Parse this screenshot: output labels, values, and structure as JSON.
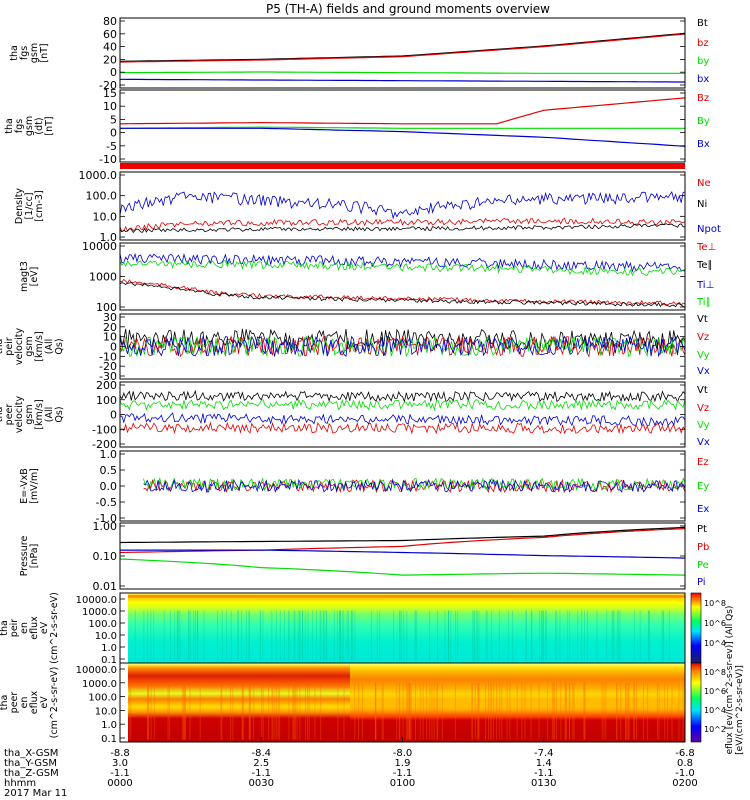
{
  "title": "P5 (TH-A) fields and ground moments overview",
  "date_label": "2017 Mar 11",
  "colors": {
    "black": "#000000",
    "red": "#e00000",
    "green": "#00dd00",
    "blue": "#0000d0"
  },
  "x_axis": {
    "row_labels": [
      "tha_X-GSM",
      "tha_Y-GSM",
      "tha_Z-GSM",
      "hhmm"
    ],
    "columns": [
      {
        "x": "-8.8",
        "y": "3.0",
        "z": "-1.1",
        "t": "0000"
      },
      {
        "x": "-8.4",
        "y": "2.5",
        "z": "-1.1",
        "t": "0030"
      },
      {
        "x": "-8.0",
        "y": "1.9",
        "z": "-1.1",
        "t": "0100"
      },
      {
        "x": "-7.4",
        "y": "1.4",
        "z": "-1.1",
        "t": "0130"
      },
      {
        "x": "-6.8",
        "y": "0.8",
        "z": "-1.0",
        "t": "0200"
      }
    ]
  },
  "colorbar": {
    "label": "[eV/(cm^2-s-sr-eV)]",
    "top_ticks": [
      "10^8",
      "10^6",
      "10^4"
    ],
    "bottom_ticks": [
      "10^8",
      "10^6",
      "10^4",
      "10^2"
    ],
    "overlap_label": "eflux [ev/(cm^2-s-sr-ev)] (All Qs)"
  },
  "chart_data": [
    {
      "type": "line",
      "ylabel": "tha fgs gsm [nT]",
      "ylim": [
        -20,
        85
      ],
      "y_ticks": [
        "80",
        "60",
        "40",
        "20",
        "0",
        "-20"
      ],
      "legend": [
        "Bt",
        "bz",
        "by",
        "bx"
      ],
      "series": [
        {
          "name": "Bt",
          "color": "#000000",
          "x": [
            0,
            30,
            60,
            90,
            120
          ],
          "values": [
            20,
            23,
            28,
            43,
            62
          ]
        },
        {
          "name": "bz",
          "color": "#e00000",
          "x": [
            0,
            30,
            60,
            90,
            120
          ],
          "values": [
            19,
            22,
            27,
            42,
            61
          ]
        },
        {
          "name": "by",
          "color": "#00dd00",
          "x": [
            0,
            30,
            60,
            90,
            120
          ],
          "values": [
            3,
            4,
            3,
            2,
            2
          ]
        },
        {
          "name": "bx",
          "color": "#0000d0",
          "x": [
            0,
            30,
            60,
            90,
            120
          ],
          "values": [
            -7,
            -8,
            -9,
            -10,
            -11
          ]
        }
      ]
    },
    {
      "type": "line",
      "ylabel": "tha fgs gsm (dt) [nT]",
      "ylim": [
        -15,
        17
      ],
      "y_ticks": [
        "15",
        "10",
        "5",
        "0",
        "-5",
        "-10"
      ],
      "legend": [
        "Bz",
        "By",
        "Bx"
      ],
      "series": [
        {
          "name": "Bz",
          "color": "#e00000",
          "x": [
            0,
            30,
            60,
            80,
            90,
            120
          ],
          "values": [
            2,
            2.5,
            2,
            2,
            8,
            13.5
          ]
        },
        {
          "name": "By",
          "color": "#00dd00",
          "x": [
            0,
            30,
            60,
            90,
            120
          ],
          "values": [
            0,
            0.5,
            0,
            0,
            0
          ]
        },
        {
          "name": "Bx",
          "color": "#0000d0",
          "x": [
            0,
            30,
            60,
            90,
            120
          ],
          "values": [
            0,
            0,
            -1.5,
            -4,
            -8
          ]
        }
      ]
    },
    {
      "type": "line",
      "ylabel": "Density [1/cc] [cm-3]",
      "ylim": [
        0.3,
        2000
      ],
      "log": true,
      "y_ticks": [
        "1000.0",
        "100.0",
        "10.0",
        "1.0"
      ],
      "legend": [
        "Ne",
        "Ni",
        "Npot"
      ],
      "series": [
        {
          "name": "Ne",
          "color": "#0000d0",
          "x": [
            0,
            15,
            30,
            60,
            90,
            120
          ],
          "values": [
            12,
            80,
            50,
            8,
            60,
            80
          ]
        },
        {
          "name": "Ni",
          "color": "#e00000",
          "x": [
            0,
            15,
            30,
            60,
            90,
            120
          ],
          "values": [
            1.2,
            2.5,
            2.8,
            3,
            3.5,
            3
          ]
        },
        {
          "name": "Npot",
          "color": "#000000",
          "x": [
            0,
            30,
            60,
            90,
            120
          ],
          "values": [
            1,
            1.2,
            1.3,
            1.5,
            2
          ]
        }
      ]
    },
    {
      "type": "line",
      "ylabel": "magt3 [eV]",
      "ylim": [
        20,
        12000
      ],
      "log": true,
      "y_ticks": [
        "10000",
        "1000",
        "100"
      ],
      "legend": [
        "Te⊥",
        "Te∥",
        "Ti⊥",
        "Ti∥"
      ],
      "series": [
        {
          "name": "Ti⊥",
          "color": "#0000d0",
          "x": [
            0,
            60,
            120
          ],
          "values": [
            2800,
            2000,
            1100
          ]
        },
        {
          "name": "Ti∥",
          "color": "#00dd00",
          "x": [
            0,
            60,
            120
          ],
          "values": [
            1800,
            1200,
            700
          ]
        },
        {
          "name": "Te⊥",
          "color": "#e00000",
          "x": [
            0,
            10,
            20,
            30,
            60,
            90,
            120
          ],
          "values": [
            320,
            200,
            100,
            75,
            60,
            45,
            38
          ]
        },
        {
          "name": "Te∥",
          "color": "#000000",
          "x": [
            0,
            10,
            20,
            30,
            60,
            90,
            120
          ],
          "values": [
            280,
            170,
            90,
            65,
            50,
            40,
            32
          ]
        }
      ]
    },
    {
      "type": "line",
      "ylabel": "tha peir velocity gsm [km/s] (All Qs)",
      "ylim": [
        -30,
        30
      ],
      "y_ticks": [
        "30",
        "20",
        "10",
        "0",
        "-10",
        "-20",
        "-30"
      ],
      "legend": [
        "Vt",
        "Vz",
        "Vy",
        "Vx"
      ],
      "series": [
        {
          "name": "Vt",
          "color": "#000000",
          "x": [
            0,
            60,
            120
          ],
          "values": [
            8,
            7,
            6
          ]
        },
        {
          "name": "Vz",
          "color": "#e00000",
          "x": [
            0,
            60,
            120
          ],
          "values": [
            0,
            0,
            0
          ]
        },
        {
          "name": "Vy",
          "color": "#00dd00",
          "x": [
            0,
            60,
            120
          ],
          "values": [
            0,
            0,
            0
          ]
        },
        {
          "name": "Vx",
          "color": "#0000d0",
          "x": [
            0,
            60,
            120
          ],
          "values": [
            0,
            0,
            0
          ]
        }
      ]
    },
    {
      "type": "line",
      "ylabel": "tha peer velocity gsm [km/s] (All Qs)",
      "ylim": [
        -200,
        200
      ],
      "y_ticks": [
        "200",
        "100",
        "0",
        "-100",
        "-200"
      ],
      "legend": [
        "Vt",
        "Vz",
        "Vy",
        "Vx"
      ],
      "series": [
        {
          "name": "Vt",
          "color": "#000000",
          "x": [
            0,
            60,
            120
          ],
          "values": [
            115,
            110,
            110
          ]
        },
        {
          "name": "Vz",
          "color": "#e00000",
          "x": [
            0,
            60,
            120
          ],
          "values": [
            -80,
            -85,
            -85
          ]
        },
        {
          "name": "Vy",
          "color": "#00dd00",
          "x": [
            0,
            60,
            120
          ],
          "values": [
            60,
            60,
            60
          ]
        },
        {
          "name": "Vx",
          "color": "#0000d0",
          "x": [
            0,
            60,
            120
          ],
          "values": [
            -20,
            -30,
            -40
          ]
        }
      ]
    },
    {
      "type": "line",
      "ylabel": "E=-VxB [mV/m]",
      "ylim": [
        -1.0,
        1.0
      ],
      "y_ticks": [
        "1.0",
        "0.5",
        "0.0",
        "-0.5",
        "-1.0"
      ],
      "legend": [
        "Ez",
        "Ey",
        "Ex"
      ],
      "series": [
        {
          "name": "Ez",
          "color": "#e00000",
          "x": [
            5,
            60,
            120
          ],
          "values": [
            0,
            0,
            0
          ]
        },
        {
          "name": "Ey",
          "color": "#00dd00",
          "x": [
            5,
            60,
            120
          ],
          "values": [
            0.05,
            0.05,
            0.05
          ]
        },
        {
          "name": "Ex",
          "color": "#0000d0",
          "x": [
            5,
            60,
            120
          ],
          "values": [
            0,
            0,
            0
          ]
        }
      ]
    },
    {
      "type": "line",
      "ylabel": "Pressure [nPa]",
      "ylim": [
        0.007,
        3
      ],
      "log": true,
      "y_ticks": [
        "1.00",
        "0.10",
        "0.01"
      ],
      "legend": [
        "Pt",
        "Pb",
        "Pe",
        "Pi"
      ],
      "series": [
        {
          "name": "Pt",
          "color": "#000000",
          "x": [
            0,
            30,
            60,
            90,
            120
          ],
          "values": [
            0.5,
            0.55,
            0.6,
            0.9,
            2.0
          ]
        },
        {
          "name": "Pb",
          "color": "#e00000",
          "x": [
            0,
            30,
            60,
            90,
            120
          ],
          "values": [
            0.2,
            0.25,
            0.35,
            0.8,
            1.8
          ]
        },
        {
          "name": "Pe",
          "color": "#00dd00",
          "x": [
            0,
            30,
            60,
            90,
            120
          ],
          "values": [
            0.11,
            0.05,
            0.025,
            0.03,
            0.025
          ]
        },
        {
          "name": "Pi",
          "color": "#0000d0",
          "x": [
            0,
            30,
            60,
            90,
            120
          ],
          "values": [
            0.25,
            0.25,
            0.2,
            0.15,
            0.12
          ]
        }
      ]
    },
    {
      "type": "heatmap",
      "ylabel": "tha peir en eflux eV (cm^2-s-sr-eV)",
      "y_ticks": [
        "10000.0",
        "1000.0",
        "100.0",
        "10.0",
        "1.0",
        "0.1"
      ]
    },
    {
      "type": "heatmap",
      "ylabel": "tha peer en eflux eV (cm^2-s-sr-eV)",
      "y_ticks": [
        "10000.0",
        "1000.0",
        "100.0",
        "10.0",
        "1.0",
        "0.1"
      ]
    }
  ]
}
